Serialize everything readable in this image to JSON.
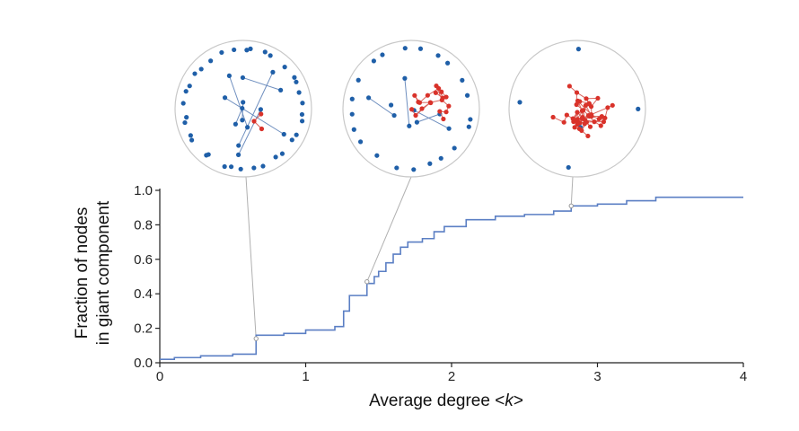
{
  "chart_data": {
    "type": "line",
    "xlabel_text": "Average degree <",
    "xlabel_var": "k",
    "xlabel_close": ">",
    "ylabel_lines": [
      "Fraction of nodes",
      "in giant component"
    ],
    "xlim": [
      0,
      4
    ],
    "ylim": [
      0,
      1.0
    ],
    "xticks": [
      "0",
      "1",
      "2",
      "3",
      "4"
    ],
    "yticks": [
      "0.0",
      "0.2",
      "0.4",
      "0.6",
      "0.8",
      "1.0"
    ],
    "grid": false,
    "legend": "none",
    "series": [
      {
        "step": true,
        "color": "#5b7fc4",
        "x": [
          0,
          0.1,
          0.28,
          0.5,
          0.66,
          0.72,
          0.85,
          1.0,
          1.2,
          1.26,
          1.3,
          1.42,
          1.47,
          1.5,
          1.55,
          1.6,
          1.65,
          1.7,
          1.8,
          1.88,
          1.95,
          2.1,
          2.3,
          2.5,
          2.7,
          2.82,
          3.0,
          3.2,
          3.4,
          4.0
        ],
        "y": [
          0.02,
          0.03,
          0.04,
          0.05,
          0.16,
          0.16,
          0.17,
          0.19,
          0.21,
          0.3,
          0.39,
          0.46,
          0.5,
          0.53,
          0.58,
          0.63,
          0.67,
          0.7,
          0.72,
          0.76,
          0.79,
          0.83,
          0.85,
          0.86,
          0.88,
          0.91,
          0.92,
          0.94,
          0.96,
          0.96
        ]
      }
    ],
    "annotations": [
      {
        "x": 0.66,
        "y": 0.14,
        "blue_nodes": 48,
        "red_nodes": 3,
        "red_edges": 2
      },
      {
        "x": 1.42,
        "y": 0.47,
        "blue_nodes": 30,
        "red_nodes": 20,
        "red_edges": 24
      },
      {
        "x": 2.82,
        "y": 0.91,
        "blue_nodes": 5,
        "red_nodes": 46,
        "red_edges": 55
      }
    ]
  },
  "colors": {
    "line": "#5b7fc4",
    "node_blue": "#1f5fa8",
    "node_red": "#d9322a",
    "edge_blue": "#6f8fbf",
    "edge_red": "#d9665f",
    "circle": "#c8c8c8",
    "connector": "#b0b0b0",
    "axis": "#222222"
  }
}
